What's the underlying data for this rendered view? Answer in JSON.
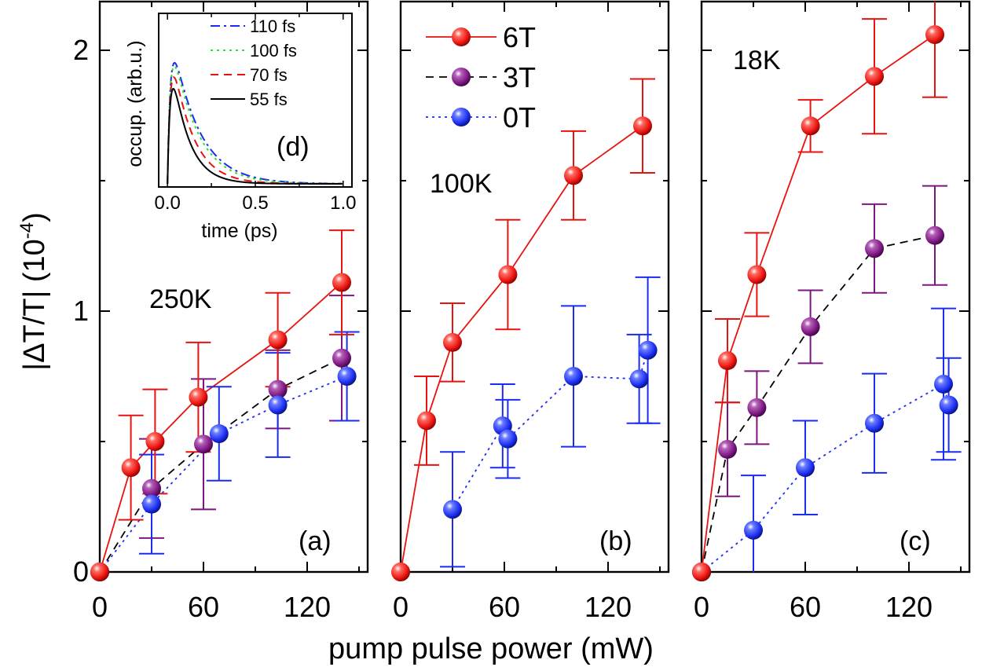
{
  "figure": {
    "xlabel": "pump pulse power (mW)",
    "ylabel": "|ΔT/T| (10",
    "ylabel_exponent": "-4",
    "ylabel_close": ")"
  },
  "legend": [
    {
      "label": "6T",
      "color": "#e8120e",
      "dash": "solid"
    },
    {
      "label": "3T",
      "color": "#000000",
      "dash": "dashed"
    },
    {
      "label": "0T",
      "color": "#1a2cf0",
      "dash": "dotted"
    }
  ],
  "marker_colors": {
    "6T": "#e8120e",
    "3T": "#7b1680",
    "0T": "#1a2cf0"
  },
  "chart_data": [
    {
      "type": "scatter",
      "panel_label": "(a)",
      "temperature_label": "250K",
      "xlabel": "pump pulse power (mW)",
      "xlim": [
        0,
        155
      ],
      "ylim": [
        0,
        2.2
      ],
      "xticks": [
        0,
        60,
        120
      ],
      "yticks": [
        0,
        1,
        2
      ],
      "series": [
        {
          "name": "6T",
          "x": [
            0,
            18,
            32,
            57,
            103,
            140
          ],
          "y": [
            0,
            0.4,
            0.5,
            0.67,
            0.89,
            1.11
          ],
          "err": [
            0,
            0.2,
            0.2,
            0.21,
            0.18,
            0.2
          ]
        },
        {
          "name": "3T",
          "x": [
            0,
            30,
            60,
            103,
            140
          ],
          "y": [
            0,
            0.32,
            0.49,
            0.7,
            0.82
          ],
          "err": [
            0,
            0.19,
            0.25,
            0.15,
            0.24
          ]
        },
        {
          "name": "0T",
          "x": [
            0,
            30,
            69,
            103,
            143
          ],
          "y": [
            0,
            0.26,
            0.53,
            0.64,
            0.75
          ],
          "err": [
            0,
            0.19,
            0.18,
            0.2,
            0.17
          ]
        }
      ]
    },
    {
      "type": "scatter",
      "panel_label": "(b)",
      "temperature_label": "100K",
      "xlabel": "pump pulse power (mW)",
      "xlim": [
        0,
        155
      ],
      "ylim": [
        0,
        2.2
      ],
      "xticks": [
        0,
        60,
        120
      ],
      "yticks": [
        0,
        1,
        2
      ],
      "series": [
        {
          "name": "6T",
          "x": [
            0,
            15,
            30,
            62,
            100,
            140
          ],
          "y": [
            0,
            0.58,
            0.88,
            1.14,
            1.52,
            1.71
          ],
          "err": [
            0,
            0.17,
            0.15,
            0.21,
            0.17,
            0.18
          ]
        },
        {
          "name": "0T",
          "x": [
            30,
            59,
            62,
            100,
            138,
            143
          ],
          "y": [
            0.24,
            0.56,
            0.51,
            0.75,
            0.74,
            0.85
          ],
          "err": [
            0.22,
            0.16,
            0.15,
            0.27,
            0.17,
            0.28
          ]
        }
      ]
    },
    {
      "type": "scatter",
      "panel_label": "(c)",
      "temperature_label": "18K",
      "xlabel": "pump pulse power (mW)",
      "xlim": [
        0,
        155
      ],
      "ylim": [
        0,
        2.2
      ],
      "xticks": [
        0,
        60,
        120
      ],
      "yticks": [
        0,
        1,
        2
      ],
      "series": [
        {
          "name": "6T",
          "x": [
            0,
            15,
            32,
            63,
            100,
            135
          ],
          "y": [
            0,
            0.81,
            1.14,
            1.71,
            1.9,
            2.06
          ],
          "err": [
            0,
            0.16,
            0.16,
            0.1,
            0.22,
            0.24
          ]
        },
        {
          "name": "3T",
          "x": [
            0,
            15,
            32,
            63,
            100,
            135
          ],
          "y": [
            0,
            0.47,
            0.63,
            0.94,
            1.24,
            1.29
          ],
          "err": [
            0,
            0.18,
            0.14,
            0.14,
            0.17,
            0.19
          ]
        },
        {
          "name": "0T",
          "x": [
            0,
            30,
            60,
            100,
            140,
            143
          ],
          "y": [
            0,
            0.16,
            0.4,
            0.57,
            0.72,
            0.64
          ],
          "err": [
            0,
            0.21,
            0.18,
            0.19,
            0.29,
            0.18
          ]
        }
      ]
    },
    {
      "type": "line",
      "panel_label": "(d)",
      "xlabel": "time (ps)",
      "ylabel": "occup. (arb.u.)",
      "xlim": [
        -0.05,
        1.05
      ],
      "ylim": [
        0,
        1.1
      ],
      "xticks": [
        0.0,
        0.5,
        1.0
      ],
      "xtick_labels": [
        "0.0",
        "0.5",
        "1.0"
      ],
      "series": [
        {
          "name": "110 fs",
          "color": "#1a2cf0",
          "dash": "dashdot",
          "tau": 0.15,
          "peak": 1.04
        },
        {
          "name": "100 fs",
          "color": "#2fe02f",
          "dash": "dotted",
          "tau": 0.14,
          "peak": 1.03
        },
        {
          "name": "70 fs",
          "color": "#e8120e",
          "dash": "dashed",
          "tau": 0.115,
          "peak": 0.99
        },
        {
          "name": "55 fs",
          "color": "#000000",
          "dash": "solid",
          "tau": 0.095,
          "peak": 0.94
        }
      ]
    }
  ]
}
